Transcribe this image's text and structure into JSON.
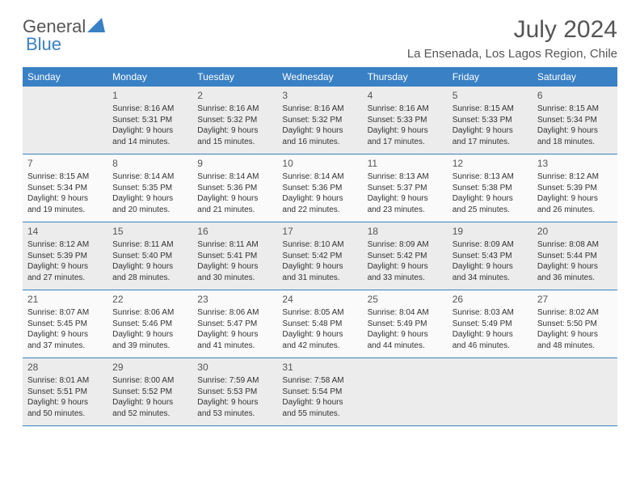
{
  "logo": {
    "text_general": "General",
    "text_blue": "Blue"
  },
  "header": {
    "month_title": "July 2024",
    "location": "La Ensenada, Los Lagos Region, Chile"
  },
  "colors": {
    "header_bg": "#3980c5",
    "header_text": "#ffffff",
    "shaded_bg": "#ececec",
    "normal_bg": "#fafafa",
    "text_gray": "#555"
  },
  "day_labels": [
    "Sunday",
    "Monday",
    "Tuesday",
    "Wednesday",
    "Thursday",
    "Friday",
    "Saturday"
  ],
  "weeks": [
    [
      {
        "day": "",
        "sunrise": "",
        "sunset": "",
        "daylight": ""
      },
      {
        "day": "1",
        "sunrise": "Sunrise: 8:16 AM",
        "sunset": "Sunset: 5:31 PM",
        "daylight": "Daylight: 9 hours and 14 minutes."
      },
      {
        "day": "2",
        "sunrise": "Sunrise: 8:16 AM",
        "sunset": "Sunset: 5:32 PM",
        "daylight": "Daylight: 9 hours and 15 minutes."
      },
      {
        "day": "3",
        "sunrise": "Sunrise: 8:16 AM",
        "sunset": "Sunset: 5:32 PM",
        "daylight": "Daylight: 9 hours and 16 minutes."
      },
      {
        "day": "4",
        "sunrise": "Sunrise: 8:16 AM",
        "sunset": "Sunset: 5:33 PM",
        "daylight": "Daylight: 9 hours and 17 minutes."
      },
      {
        "day": "5",
        "sunrise": "Sunrise: 8:15 AM",
        "sunset": "Sunset: 5:33 PM",
        "daylight": "Daylight: 9 hours and 17 minutes."
      },
      {
        "day": "6",
        "sunrise": "Sunrise: 8:15 AM",
        "sunset": "Sunset: 5:34 PM",
        "daylight": "Daylight: 9 hours and 18 minutes."
      }
    ],
    [
      {
        "day": "7",
        "sunrise": "Sunrise: 8:15 AM",
        "sunset": "Sunset: 5:34 PM",
        "daylight": "Daylight: 9 hours and 19 minutes."
      },
      {
        "day": "8",
        "sunrise": "Sunrise: 8:14 AM",
        "sunset": "Sunset: 5:35 PM",
        "daylight": "Daylight: 9 hours and 20 minutes."
      },
      {
        "day": "9",
        "sunrise": "Sunrise: 8:14 AM",
        "sunset": "Sunset: 5:36 PM",
        "daylight": "Daylight: 9 hours and 21 minutes."
      },
      {
        "day": "10",
        "sunrise": "Sunrise: 8:14 AM",
        "sunset": "Sunset: 5:36 PM",
        "daylight": "Daylight: 9 hours and 22 minutes."
      },
      {
        "day": "11",
        "sunrise": "Sunrise: 8:13 AM",
        "sunset": "Sunset: 5:37 PM",
        "daylight": "Daylight: 9 hours and 23 minutes."
      },
      {
        "day": "12",
        "sunrise": "Sunrise: 8:13 AM",
        "sunset": "Sunset: 5:38 PM",
        "daylight": "Daylight: 9 hours and 25 minutes."
      },
      {
        "day": "13",
        "sunrise": "Sunrise: 8:12 AM",
        "sunset": "Sunset: 5:39 PM",
        "daylight": "Daylight: 9 hours and 26 minutes."
      }
    ],
    [
      {
        "day": "14",
        "sunrise": "Sunrise: 8:12 AM",
        "sunset": "Sunset: 5:39 PM",
        "daylight": "Daylight: 9 hours and 27 minutes."
      },
      {
        "day": "15",
        "sunrise": "Sunrise: 8:11 AM",
        "sunset": "Sunset: 5:40 PM",
        "daylight": "Daylight: 9 hours and 28 minutes."
      },
      {
        "day": "16",
        "sunrise": "Sunrise: 8:11 AM",
        "sunset": "Sunset: 5:41 PM",
        "daylight": "Daylight: 9 hours and 30 minutes."
      },
      {
        "day": "17",
        "sunrise": "Sunrise: 8:10 AM",
        "sunset": "Sunset: 5:42 PM",
        "daylight": "Daylight: 9 hours and 31 minutes."
      },
      {
        "day": "18",
        "sunrise": "Sunrise: 8:09 AM",
        "sunset": "Sunset: 5:42 PM",
        "daylight": "Daylight: 9 hours and 33 minutes."
      },
      {
        "day": "19",
        "sunrise": "Sunrise: 8:09 AM",
        "sunset": "Sunset: 5:43 PM",
        "daylight": "Daylight: 9 hours and 34 minutes."
      },
      {
        "day": "20",
        "sunrise": "Sunrise: 8:08 AM",
        "sunset": "Sunset: 5:44 PM",
        "daylight": "Daylight: 9 hours and 36 minutes."
      }
    ],
    [
      {
        "day": "21",
        "sunrise": "Sunrise: 8:07 AM",
        "sunset": "Sunset: 5:45 PM",
        "daylight": "Daylight: 9 hours and 37 minutes."
      },
      {
        "day": "22",
        "sunrise": "Sunrise: 8:06 AM",
        "sunset": "Sunset: 5:46 PM",
        "daylight": "Daylight: 9 hours and 39 minutes."
      },
      {
        "day": "23",
        "sunrise": "Sunrise: 8:06 AM",
        "sunset": "Sunset: 5:47 PM",
        "daylight": "Daylight: 9 hours and 41 minutes."
      },
      {
        "day": "24",
        "sunrise": "Sunrise: 8:05 AM",
        "sunset": "Sunset: 5:48 PM",
        "daylight": "Daylight: 9 hours and 42 minutes."
      },
      {
        "day": "25",
        "sunrise": "Sunrise: 8:04 AM",
        "sunset": "Sunset: 5:49 PM",
        "daylight": "Daylight: 9 hours and 44 minutes."
      },
      {
        "day": "26",
        "sunrise": "Sunrise: 8:03 AM",
        "sunset": "Sunset: 5:49 PM",
        "daylight": "Daylight: 9 hours and 46 minutes."
      },
      {
        "day": "27",
        "sunrise": "Sunrise: 8:02 AM",
        "sunset": "Sunset: 5:50 PM",
        "daylight": "Daylight: 9 hours and 48 minutes."
      }
    ],
    [
      {
        "day": "28",
        "sunrise": "Sunrise: 8:01 AM",
        "sunset": "Sunset: 5:51 PM",
        "daylight": "Daylight: 9 hours and 50 minutes."
      },
      {
        "day": "29",
        "sunrise": "Sunrise: 8:00 AM",
        "sunset": "Sunset: 5:52 PM",
        "daylight": "Daylight: 9 hours and 52 minutes."
      },
      {
        "day": "30",
        "sunrise": "Sunrise: 7:59 AM",
        "sunset": "Sunset: 5:53 PM",
        "daylight": "Daylight: 9 hours and 53 minutes."
      },
      {
        "day": "31",
        "sunrise": "Sunrise: 7:58 AM",
        "sunset": "Sunset: 5:54 PM",
        "daylight": "Daylight: 9 hours and 55 minutes."
      },
      {
        "day": "",
        "sunrise": "",
        "sunset": "",
        "daylight": ""
      },
      {
        "day": "",
        "sunrise": "",
        "sunset": "",
        "daylight": ""
      },
      {
        "day": "",
        "sunrise": "",
        "sunset": "",
        "daylight": ""
      }
    ]
  ]
}
